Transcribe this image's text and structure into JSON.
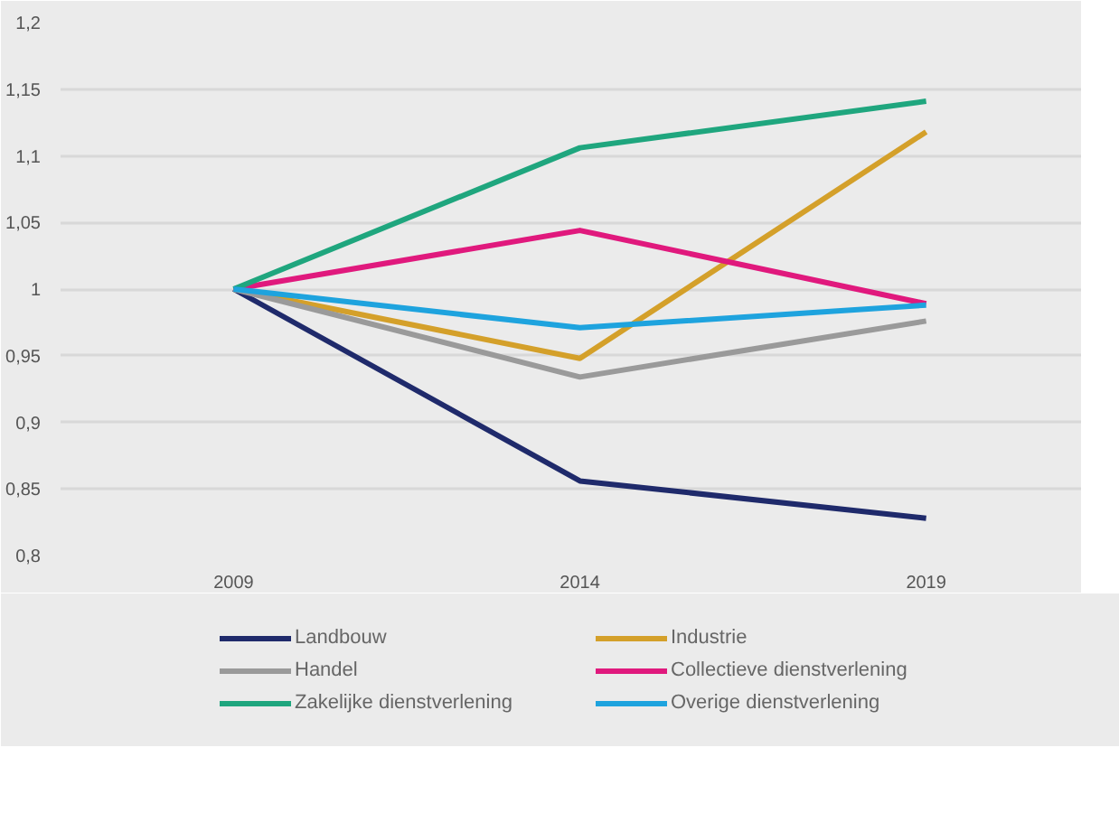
{
  "chart_data": {
    "type": "line",
    "categories": [
      "2009",
      "2014",
      "2019"
    ],
    "series": [
      {
        "name": "Landbouw",
        "color": "#1f2a6b",
        "values": [
          1,
          0.856,
          0.828
        ]
      },
      {
        "name": "Industrie",
        "color": "#d4a02a",
        "values": [
          1,
          0.948,
          1.118
        ]
      },
      {
        "name": "Handel",
        "color": "#9a9a9a",
        "values": [
          1,
          0.934,
          0.976
        ]
      },
      {
        "name": "Collectieve dienstverlening",
        "color": "#e0197d",
        "values": [
          1,
          1.044,
          0.989
        ]
      },
      {
        "name": "Zakelijke dienstverlening",
        "color": "#1fa67e",
        "values": [
          1,
          1.106,
          1.141
        ]
      },
      {
        "name": "Overige dienstverlening",
        "color": "#1ea3de",
        "values": [
          1,
          0.971,
          0.988
        ]
      }
    ],
    "ylim": [
      0.8,
      1.2
    ],
    "yticks": [
      {
        "value": 0.8,
        "label": "0,8"
      },
      {
        "value": 0.85,
        "label": "0,85"
      },
      {
        "value": 0.9,
        "label": "0,9"
      },
      {
        "value": 0.95,
        "label": "0,95"
      },
      {
        "value": 1,
        "label": "1"
      },
      {
        "value": 1.05,
        "label": "1,05"
      },
      {
        "value": 1.1,
        "label": "1,1"
      },
      {
        "value": 1.15,
        "label": "1,15"
      },
      {
        "value": 1.2,
        "label": "1,2"
      }
    ],
    "grid": "y",
    "legend": "bottom",
    "marker": "none",
    "line_style": "solid"
  }
}
